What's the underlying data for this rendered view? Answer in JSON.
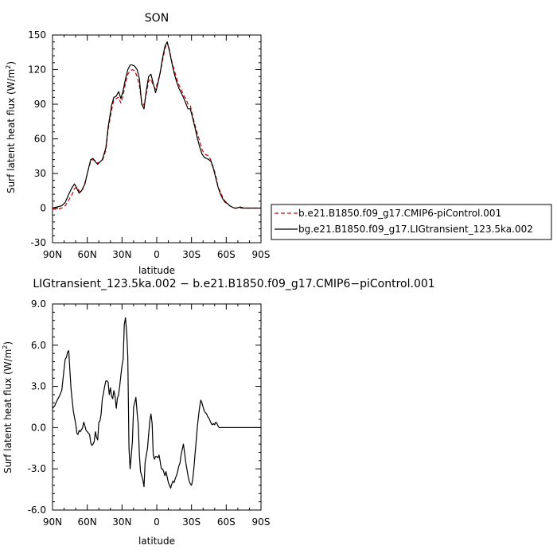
{
  "chart_data": [
    {
      "type": "line",
      "title": "SON",
      "xlabel": "latitude",
      "ylabel": "Surf latent heat flux (W/m",
      "ylabel_sup": "2",
      "ylabel_end": ")",
      "xlim": [
        90,
        -90
      ],
      "ylim": [
        -30,
        150
      ],
      "xticks": [
        90,
        60,
        30,
        0,
        -30,
        -60,
        -90
      ],
      "xtick_labels": [
        "90N",
        "60N",
        "30N",
        "0",
        "30S",
        "60S",
        "90S"
      ],
      "yticks": [
        -30,
        0,
        30,
        60,
        90,
        120,
        150
      ],
      "ytick_labels": [
        "-30",
        "0",
        "30",
        "60",
        "90",
        "120",
        "150"
      ],
      "legend_position": "right",
      "series": [
        {
          "name": "b.e21.B1850.f09_g17.CMIP6-piControl.001",
          "color": "#cc0000",
          "dash": "dashed",
          "x": [
            90,
            86,
            82,
            79,
            76,
            73,
            71,
            69,
            67,
            65,
            62,
            60,
            57,
            55,
            53,
            51,
            49,
            47,
            44,
            42,
            39,
            37,
            35,
            33,
            31,
            29,
            27,
            25,
            23,
            21,
            19,
            17,
            15,
            13,
            11,
            9,
            7,
            5,
            3,
            1,
            -1,
            -3,
            -5,
            -7,
            -9,
            -11,
            -13,
            -15,
            -17,
            -19,
            -21,
            -23,
            -25,
            -27,
            -29,
            -31,
            -33,
            -35,
            -37,
            -39,
            -41,
            -43,
            -45,
            -47,
            -49,
            -51,
            -53,
            -55,
            -57,
            -59,
            -61,
            -63,
            -65,
            -67,
            -69,
            -72,
            -75,
            -78,
            -81,
            -84,
            -87,
            -90
          ],
          "y": [
            -1,
            -1,
            0,
            2,
            7,
            12,
            17,
            18,
            15,
            14,
            22,
            30,
            41,
            42,
            41,
            39,
            40,
            41,
            50,
            68,
            85,
            94,
            95,
            96,
            91,
            98,
            108,
            116,
            119,
            120,
            119,
            114,
            106,
            92,
            89,
            99,
            110,
            112,
            106,
            103,
            110,
            117,
            128,
            138,
            144,
            137,
            127,
            120,
            113,
            107,
            103,
            98,
            95,
            90,
            89,
            80,
            72,
            65,
            58,
            51,
            47,
            46,
            45,
            41,
            35,
            28,
            18,
            14,
            9,
            6,
            4,
            2,
            1,
            0,
            0,
            0,
            0,
            0,
            0,
            0,
            0,
            0
          ]
        },
        {
          "name": "bg.e21.B1850.f09_g17.LIGtransient_123.5ka.002",
          "color": "#000000",
          "dash": "solid",
          "x": [
            90,
            86,
            82,
            79,
            76,
            73,
            71,
            69,
            67,
            65,
            62,
            60,
            57,
            55,
            53,
            51,
            49,
            47,
            44,
            42,
            39,
            37,
            35,
            33,
            31,
            29,
            27,
            25,
            23,
            21,
            19,
            17,
            15,
            13,
            11,
            9,
            7,
            5,
            3,
            1,
            -1,
            -3,
            -5,
            -7,
            -9,
            -11,
            -13,
            -15,
            -17,
            -19,
            -21,
            -23,
            -25,
            -27,
            -29,
            -31,
            -33,
            -35,
            -37,
            -39,
            -41,
            -43,
            -45,
            -47,
            -49,
            -51,
            -53,
            -55,
            -57,
            -59,
            -61,
            -63,
            -65,
            -67,
            -69,
            -72,
            -75,
            -78,
            -81,
            -84,
            -87,
            -90
          ],
          "y": [
            0,
            1,
            2,
            5,
            12,
            18,
            21,
            17,
            13,
            15,
            21,
            30,
            42,
            43,
            40,
            38,
            40,
            42,
            52,
            70,
            89,
            96,
            97,
            101,
            95,
            102,
            112,
            120,
            124,
            124,
            123,
            120,
            112,
            90,
            86,
            102,
            114,
            116,
            108,
            100,
            108,
            118,
            130,
            140,
            144,
            136,
            126,
            117,
            110,
            104,
            100,
            96,
            91,
            86,
            86,
            78,
            70,
            61,
            53,
            47,
            44,
            43,
            42,
            40,
            34,
            26,
            18,
            12,
            8,
            5,
            4,
            2,
            1,
            0,
            0,
            1,
            0,
            0,
            0,
            0,
            0,
            0
          ]
        }
      ]
    },
    {
      "type": "line",
      "title": "LIGtransient_123.5ka.002 − b.e21.B1850.f09_g17.CMIP6−piControl.001",
      "xlabel": "latitude",
      "ylabel": "Surf latent heat flux (W/m",
      "ylabel_sup": "2",
      "ylabel_end": ")",
      "xlim": [
        90,
        -90
      ],
      "ylim": [
        -6,
        9
      ],
      "xticks": [
        90,
        60,
        30,
        0,
        -30,
        -60,
        -90
      ],
      "xtick_labels": [
        "90N",
        "60N",
        "30N",
        "0",
        "30S",
        "60S",
        "90S"
      ],
      "yticks": [
        -6,
        -3,
        0,
        3,
        6,
        9
      ],
      "ytick_labels": [
        "-6.0",
        "-3.0",
        "0.0",
        "3.0",
        "6.0",
        "9.0"
      ],
      "series": [
        {
          "color": "#000000",
          "dash": "solid",
          "x": [
            90,
            88,
            86,
            84,
            82,
            80,
            79,
            78,
            77,
            76,
            75,
            74,
            73,
            72,
            71,
            70,
            69,
            68,
            67,
            66,
            64,
            63,
            62,
            61,
            60,
            58,
            57,
            56,
            55,
            54,
            53,
            52,
            51,
            50,
            49,
            48,
            47,
            46,
            45,
            44,
            43,
            42,
            41,
            40,
            39,
            38,
            37,
            36,
            35,
            34,
            33,
            32,
            31,
            30,
            29,
            28,
            27,
            26,
            25,
            24,
            23,
            22,
            21,
            20,
            19,
            18,
            17,
            16,
            15,
            14,
            13,
            12,
            11,
            10,
            9,
            8,
            7,
            6,
            5,
            4,
            3,
            2,
            1,
            0,
            -1,
            -2,
            -3,
            -4,
            -5,
            -6,
            -7,
            -8,
            -9,
            -10,
            -11,
            -12,
            -13,
            -14,
            -15,
            -16,
            -17,
            -18,
            -19,
            -20,
            -21,
            -22,
            -23,
            -24,
            -25,
            -26,
            -27,
            -28,
            -29,
            -30,
            -31,
            -32,
            -33,
            -34,
            -35,
            -36,
            -37,
            -38,
            -39,
            -40,
            -41,
            -42,
            -43,
            -44,
            -45,
            -46,
            -47,
            -48,
            -49,
            -50,
            -51,
            -52,
            -53,
            -54,
            -55,
            -56,
            -57,
            -58,
            -59,
            -60,
            -61,
            -62,
            -64,
            -66,
            -68,
            -70,
            -72,
            -74,
            -76,
            -78,
            -80,
            -82,
            -84,
            -86,
            -88,
            -90
          ],
          "y": [
            1.4,
            1.6,
            2.0,
            2.3,
            2.7,
            4.3,
            5.0,
            5.1,
            5.5,
            5.6,
            4.2,
            2.8,
            2.0,
            1.2,
            0.7,
            0.3,
            -0.4,
            -0.5,
            -0.2,
            -0.3,
            0.0,
            0.4,
            0.1,
            -0.2,
            -0.3,
            -0.5,
            -1.1,
            -1.3,
            -1.2,
            -1.0,
            -0.3,
            -0.7,
            -0.9,
            0.4,
            0.5,
            1.0,
            2.1,
            2.5,
            3.0,
            3.4,
            3.4,
            3.3,
            2.4,
            2.9,
            2.3,
            2.1,
            2.7,
            2.3,
            1.4,
            2.1,
            2.4,
            3.0,
            3.8,
            4.5,
            5.0,
            7.5,
            8.0,
            6.9,
            5.2,
            -1.5,
            -3.0,
            -2.0,
            -1.0,
            1.5,
            1.8,
            2.2,
            1.1,
            0.3,
            -2.0,
            -3.2,
            -3.5,
            -3.8,
            -4.3,
            -2.5,
            -2.0,
            -1.5,
            -0.5,
            0.5,
            1.0,
            0.3,
            -2.0,
            -2.3,
            -2.1,
            -2.1,
            -2.2,
            -2.0,
            -2.5,
            -3.0,
            -3.0,
            -3.2,
            -3.5,
            -3.2,
            -3.6,
            -4.0,
            -4.2,
            -4.4,
            -4.1,
            -3.9,
            -4.0,
            -3.7,
            -3.5,
            -3.2,
            -2.8,
            -2.6,
            -2.0,
            -1.6,
            -1.2,
            -1.8,
            -2.5,
            -3.0,
            -3.5,
            -3.9,
            -4.1,
            -4.2,
            -3.8,
            -3.0,
            -2.0,
            -1.0,
            0.0,
            0.8,
            1.5,
            2.0,
            1.8,
            1.5,
            1.2,
            1.1,
            1.0,
            0.8,
            0.7,
            0.5,
            0.3,
            0.2,
            0.3,
            0.2,
            0.4,
            0.3,
            0.1,
            0.0,
            0.0,
            0.0,
            0.0,
            0.0,
            0.0,
            0.0,
            0.0,
            0.0,
            0.0,
            0.0,
            0.0,
            0.0,
            0.0,
            0.0,
            0.0,
            0.0,
            0.0,
            0.0,
            0.0,
            0.0,
            0.0,
            0.0
          ]
        }
      ]
    }
  ]
}
